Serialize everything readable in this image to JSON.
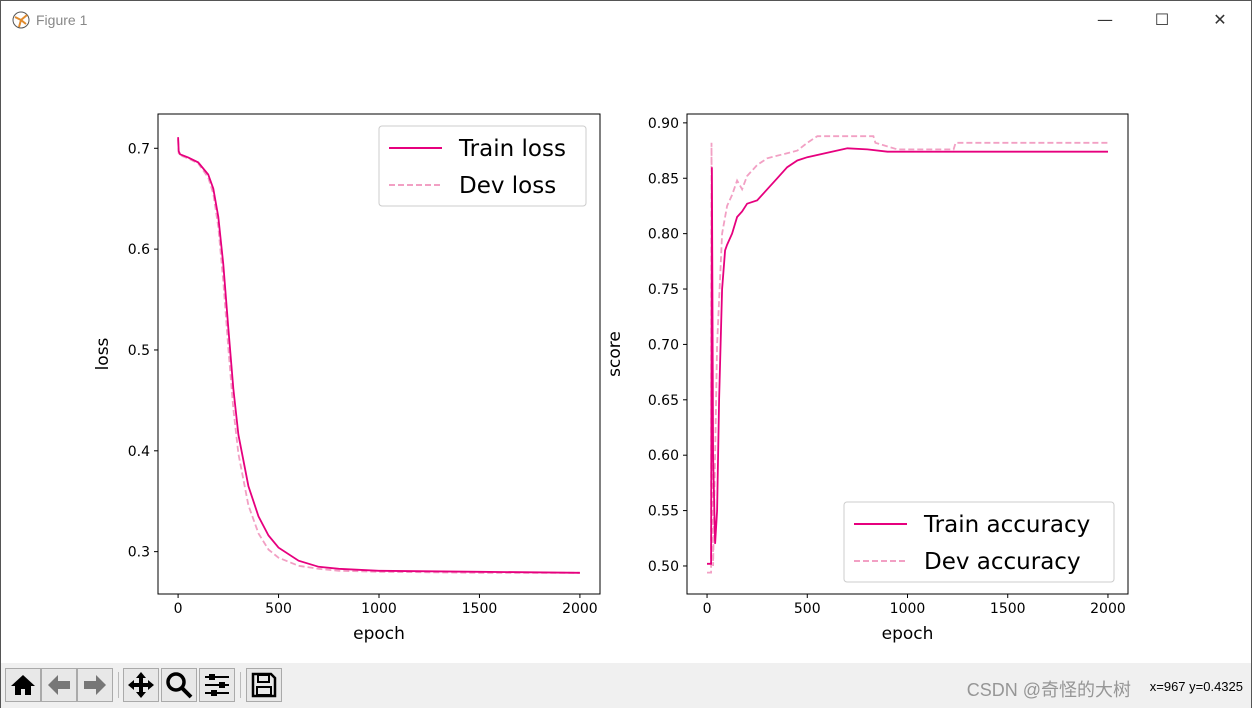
{
  "window": {
    "title": "Figure 1",
    "controls": [
      "minimize",
      "maximize",
      "close"
    ]
  },
  "toolbar": {
    "buttons": [
      {
        "name": "home-icon"
      },
      {
        "name": "back-icon"
      },
      {
        "name": "forward-icon"
      },
      {
        "name": "pan-icon"
      },
      {
        "name": "zoom-icon"
      },
      {
        "name": "configure-subplots-icon"
      },
      {
        "name": "save-icon"
      }
    ],
    "coords": "x=967 y=0.4325",
    "watermark": "CSDN @奇怪的大树"
  },
  "colors": {
    "train": "#e6007e",
    "dev": "#f2a0c4"
  },
  "chart_data": [
    {
      "type": "line",
      "xlabel": "epoch",
      "ylabel": "loss",
      "xlim": [
        -100,
        2100
      ],
      "ylim": [
        0.258,
        0.734
      ],
      "xticks": [
        0,
        500,
        1000,
        1500,
        2000
      ],
      "yticks": [
        0.3,
        0.4,
        0.5,
        0.6,
        0.7
      ],
      "legend": "top-right",
      "series": [
        {
          "name": "Train loss",
          "style": "solid",
          "points": [
            [
              0,
              0.711
            ],
            [
              3,
              0.697
            ],
            [
              10,
              0.694
            ],
            [
              50,
              0.691
            ],
            [
              100,
              0.686
            ],
            [
              150,
              0.674
            ],
            [
              175,
              0.66
            ],
            [
              200,
              0.632
            ],
            [
              225,
              0.585
            ],
            [
              250,
              0.522
            ],
            [
              275,
              0.462
            ],
            [
              300,
              0.416
            ],
            [
              350,
              0.365
            ],
            [
              400,
              0.335
            ],
            [
              450,
              0.316
            ],
            [
              500,
              0.304
            ],
            [
              600,
              0.291
            ],
            [
              700,
              0.285
            ],
            [
              800,
              0.283
            ],
            [
              1000,
              0.281
            ],
            [
              1500,
              0.28
            ],
            [
              2000,
              0.279
            ]
          ]
        },
        {
          "name": "Dev loss",
          "style": "dashed",
          "points": [
            [
              0,
              0.709
            ],
            [
              3,
              0.695
            ],
            [
              10,
              0.693
            ],
            [
              50,
              0.69
            ],
            [
              100,
              0.685
            ],
            [
              150,
              0.671
            ],
            [
              175,
              0.655
            ],
            [
              200,
              0.622
            ],
            [
              225,
              0.568
            ],
            [
              250,
              0.502
            ],
            [
              275,
              0.442
            ],
            [
              300,
              0.397
            ],
            [
              350,
              0.346
            ],
            [
              400,
              0.318
            ],
            [
              450,
              0.302
            ],
            [
              500,
              0.294
            ],
            [
              600,
              0.286
            ],
            [
              700,
              0.283
            ],
            [
              800,
              0.281
            ],
            [
              1000,
              0.28
            ],
            [
              1500,
              0.279
            ],
            [
              2000,
              0.279
            ]
          ]
        }
      ]
    },
    {
      "type": "line",
      "xlabel": "epoch",
      "ylabel": "score",
      "xlim": [
        -100,
        2100
      ],
      "ylim": [
        0.4747,
        0.908
      ],
      "xticks": [
        0,
        500,
        1000,
        1500,
        2000
      ],
      "yticks": [
        0.5,
        0.55,
        0.6,
        0.65,
        0.7,
        0.75,
        0.8,
        0.85,
        0.9
      ],
      "legend": "bottom-right",
      "series": [
        {
          "name": "Train accuracy",
          "style": "solid",
          "points": [
            [
              0,
              0.502
            ],
            [
              20,
              0.502
            ],
            [
              24,
              0.86
            ],
            [
              30,
              0.6
            ],
            [
              40,
              0.52
            ],
            [
              50,
              0.55
            ],
            [
              60,
              0.65
            ],
            [
              75,
              0.75
            ],
            [
              90,
              0.785
            ],
            [
              100,
              0.79
            ],
            [
              125,
              0.8
            ],
            [
              150,
              0.815
            ],
            [
              175,
              0.82
            ],
            [
              200,
              0.827
            ],
            [
              250,
              0.83
            ],
            [
              300,
              0.84
            ],
            [
              350,
              0.85
            ],
            [
              400,
              0.86
            ],
            [
              450,
              0.866
            ],
            [
              500,
              0.869
            ],
            [
              600,
              0.873
            ],
            [
              700,
              0.877
            ],
            [
              800,
              0.876
            ],
            [
              900,
              0.874
            ],
            [
              1000,
              0.874
            ],
            [
              2000,
              0.874
            ]
          ]
        },
        {
          "name": "Dev accuracy",
          "style": "dashed",
          "points": [
            [
              0,
              0.494
            ],
            [
              20,
              0.494
            ],
            [
              22,
              0.882
            ],
            [
              30,
              0.5
            ],
            [
              50,
              0.7
            ],
            [
              75,
              0.8
            ],
            [
              100,
              0.825
            ],
            [
              125,
              0.835
            ],
            [
              150,
              0.848
            ],
            [
              175,
              0.84
            ],
            [
              200,
              0.852
            ],
            [
              250,
              0.862
            ],
            [
              300,
              0.868
            ],
            [
              450,
              0.875
            ],
            [
              500,
              0.882
            ],
            [
              550,
              0.888
            ],
            [
              830,
              0.888
            ],
            [
              840,
              0.882
            ],
            [
              950,
              0.876
            ],
            [
              1230,
              0.876
            ],
            [
              1240,
              0.882
            ],
            [
              2000,
              0.882
            ]
          ]
        }
      ]
    }
  ]
}
